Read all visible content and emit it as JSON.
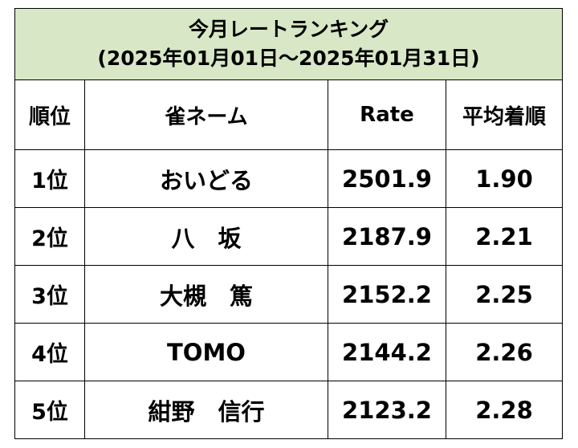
{
  "header": {
    "title": [
      "今月レートランキング",
      "(2025年01月01日〜2025年01月31日)"
    ]
  },
  "table": {
    "columns": [
      "順位",
      "雀ネーム",
      "Rate",
      "平均着順"
    ],
    "rows": [
      [
        "1位",
        "おいどる",
        "2501.9",
        "1.90"
      ],
      [
        "2位",
        "八　坂",
        "2187.9",
        "2.21"
      ],
      [
        "3位",
        "大槻　篤",
        "2152.2",
        "2.25"
      ],
      [
        "4位",
        "TOMO",
        "2144.2",
        "2.26"
      ],
      [
        "5位",
        "紺野　信行",
        "2123.2",
        "2.28"
      ]
    ]
  }
}
